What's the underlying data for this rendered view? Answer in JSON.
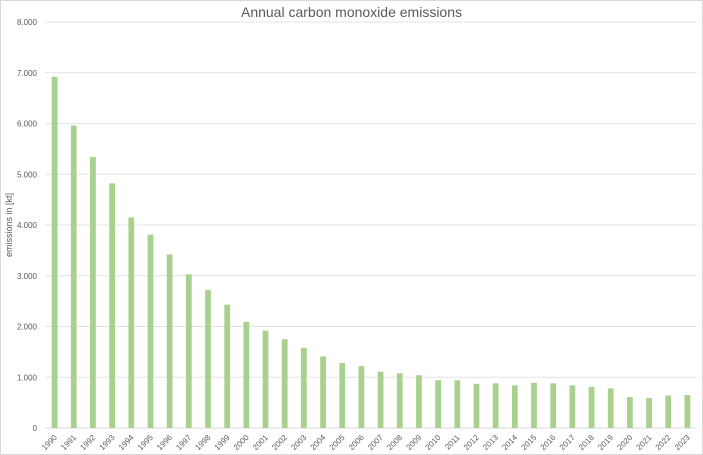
{
  "chart_data": {
    "type": "bar",
    "title": "Annual carbon monoxide emissions",
    "xlabel": "",
    "ylabel": "emissions in [kt]",
    "ylim": [
      0,
      8000
    ],
    "yticks": [
      "0",
      "1.000",
      "2.000",
      "3.000",
      "4.000",
      "5.000",
      "6.000",
      "7.000",
      "8.000"
    ],
    "grid": true,
    "legend": "none",
    "bar_color": "#a9d18e",
    "categories": [
      "1990",
      "1991",
      "1992",
      "1993",
      "1994",
      "1995",
      "1996",
      "1997",
      "1998",
      "1999",
      "2000",
      "2001",
      "2002",
      "2003",
      "2004",
      "2005",
      "2006",
      "2007",
      "2008",
      "2009",
      "2010",
      "2011",
      "2012",
      "2013",
      "2014",
      "2015",
      "2016",
      "2017",
      "2018",
      "2019",
      "2020",
      "2021",
      "2022",
      "2023"
    ],
    "values": [
      6920,
      5960,
      5340,
      4820,
      4150,
      3810,
      3420,
      3030,
      2720,
      2430,
      2090,
      1920,
      1750,
      1580,
      1410,
      1280,
      1220,
      1110,
      1080,
      1040,
      940,
      940,
      870,
      880,
      840,
      890,
      880,
      840,
      810,
      780,
      610,
      590,
      640,
      650
    ]
  }
}
